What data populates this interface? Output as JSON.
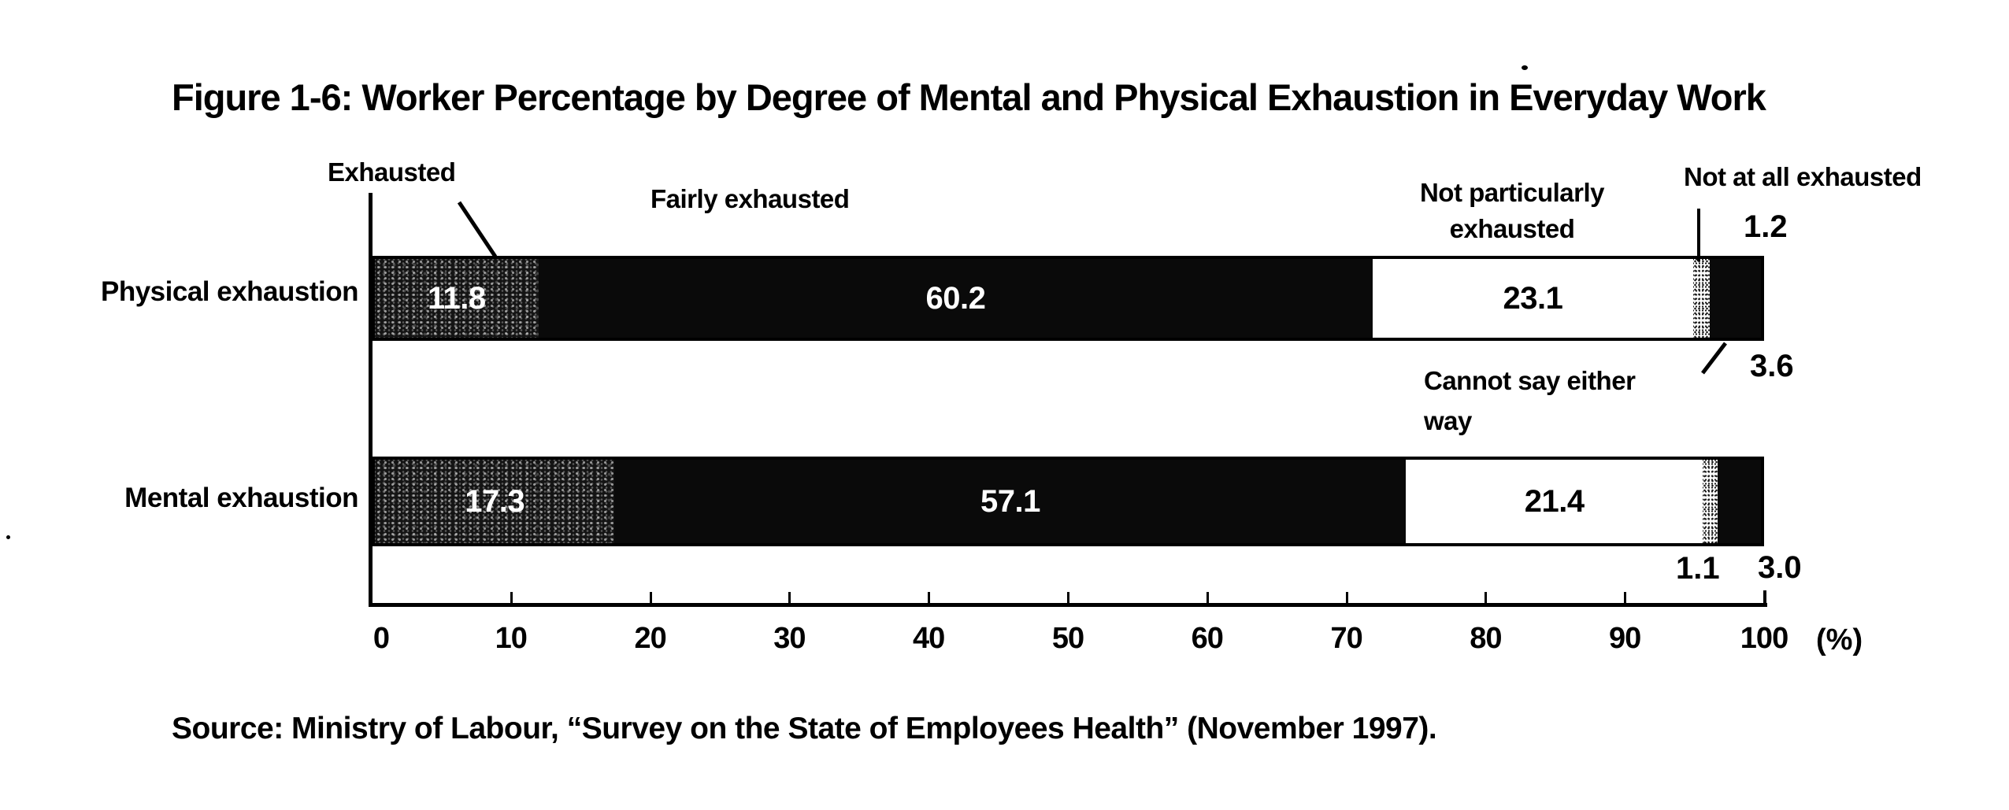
{
  "title": "Figure 1-6: Worker Percentage by Degree of Mental and Physical Exhaustion in Everyday Work",
  "source": "Source: Ministry of Labour, “Survey on the State of Employees Health” (November 1997).",
  "colors": {
    "ink": "#000000",
    "paper": "#ffffff"
  },
  "chart_data": {
    "type": "bar",
    "stacked": true,
    "orientation": "horizontal",
    "title": "Figure 1-6: Worker Percentage by Degree of Mental and Physical Exhaustion in Everyday Work",
    "categories": [
      "Physical exhaustion",
      "Mental exhaustion"
    ],
    "segments": [
      {
        "label": "Exhausted",
        "fill": "dark-halftone",
        "value_inside": true,
        "text_color": "#ffffff"
      },
      {
        "label": "Fairly exhausted",
        "fill": "black",
        "value_inside": true,
        "text_color": "#ffffff"
      },
      {
        "label": "Not particularly exhausted",
        "fill": "white",
        "value_inside": true,
        "text_color": "#000000"
      },
      {
        "label": "Not at all exhausted",
        "fill": "stipple",
        "value_inside": false,
        "text_color": null
      },
      {
        "label": "Cannot say either way",
        "fill": "black",
        "value_inside": false,
        "text_color": null
      }
    ],
    "series": [
      {
        "name": "Physical exhaustion",
        "values": [
          11.8,
          60.2,
          23.1,
          1.2,
          3.6
        ],
        "labels": [
          "11.8",
          "60.2",
          "23.1",
          "1.2",
          "3.6"
        ]
      },
      {
        "name": "Mental exhaustion",
        "values": [
          17.3,
          57.1,
          21.4,
          1.1,
          3.0
        ],
        "labels": [
          "17.3",
          "57.1",
          "21.4",
          "1.1",
          "3.0"
        ]
      }
    ],
    "x_axis": {
      "min": 0,
      "max": 100,
      "ticks": [
        0,
        10,
        20,
        30,
        40,
        50,
        60,
        70,
        80,
        90,
        100
      ],
      "unit": "(%)"
    },
    "annotations": {
      "exhausted": "Exhausted",
      "fairly_exhausted": "Fairly exhausted",
      "not_particularly": "Not particularly\nexhausted",
      "not_at_all": "Not at all exhausted",
      "cannot_say": "Cannot say either\nway"
    },
    "legend_position": "annotations-with-leader-lines",
    "grid": false
  }
}
